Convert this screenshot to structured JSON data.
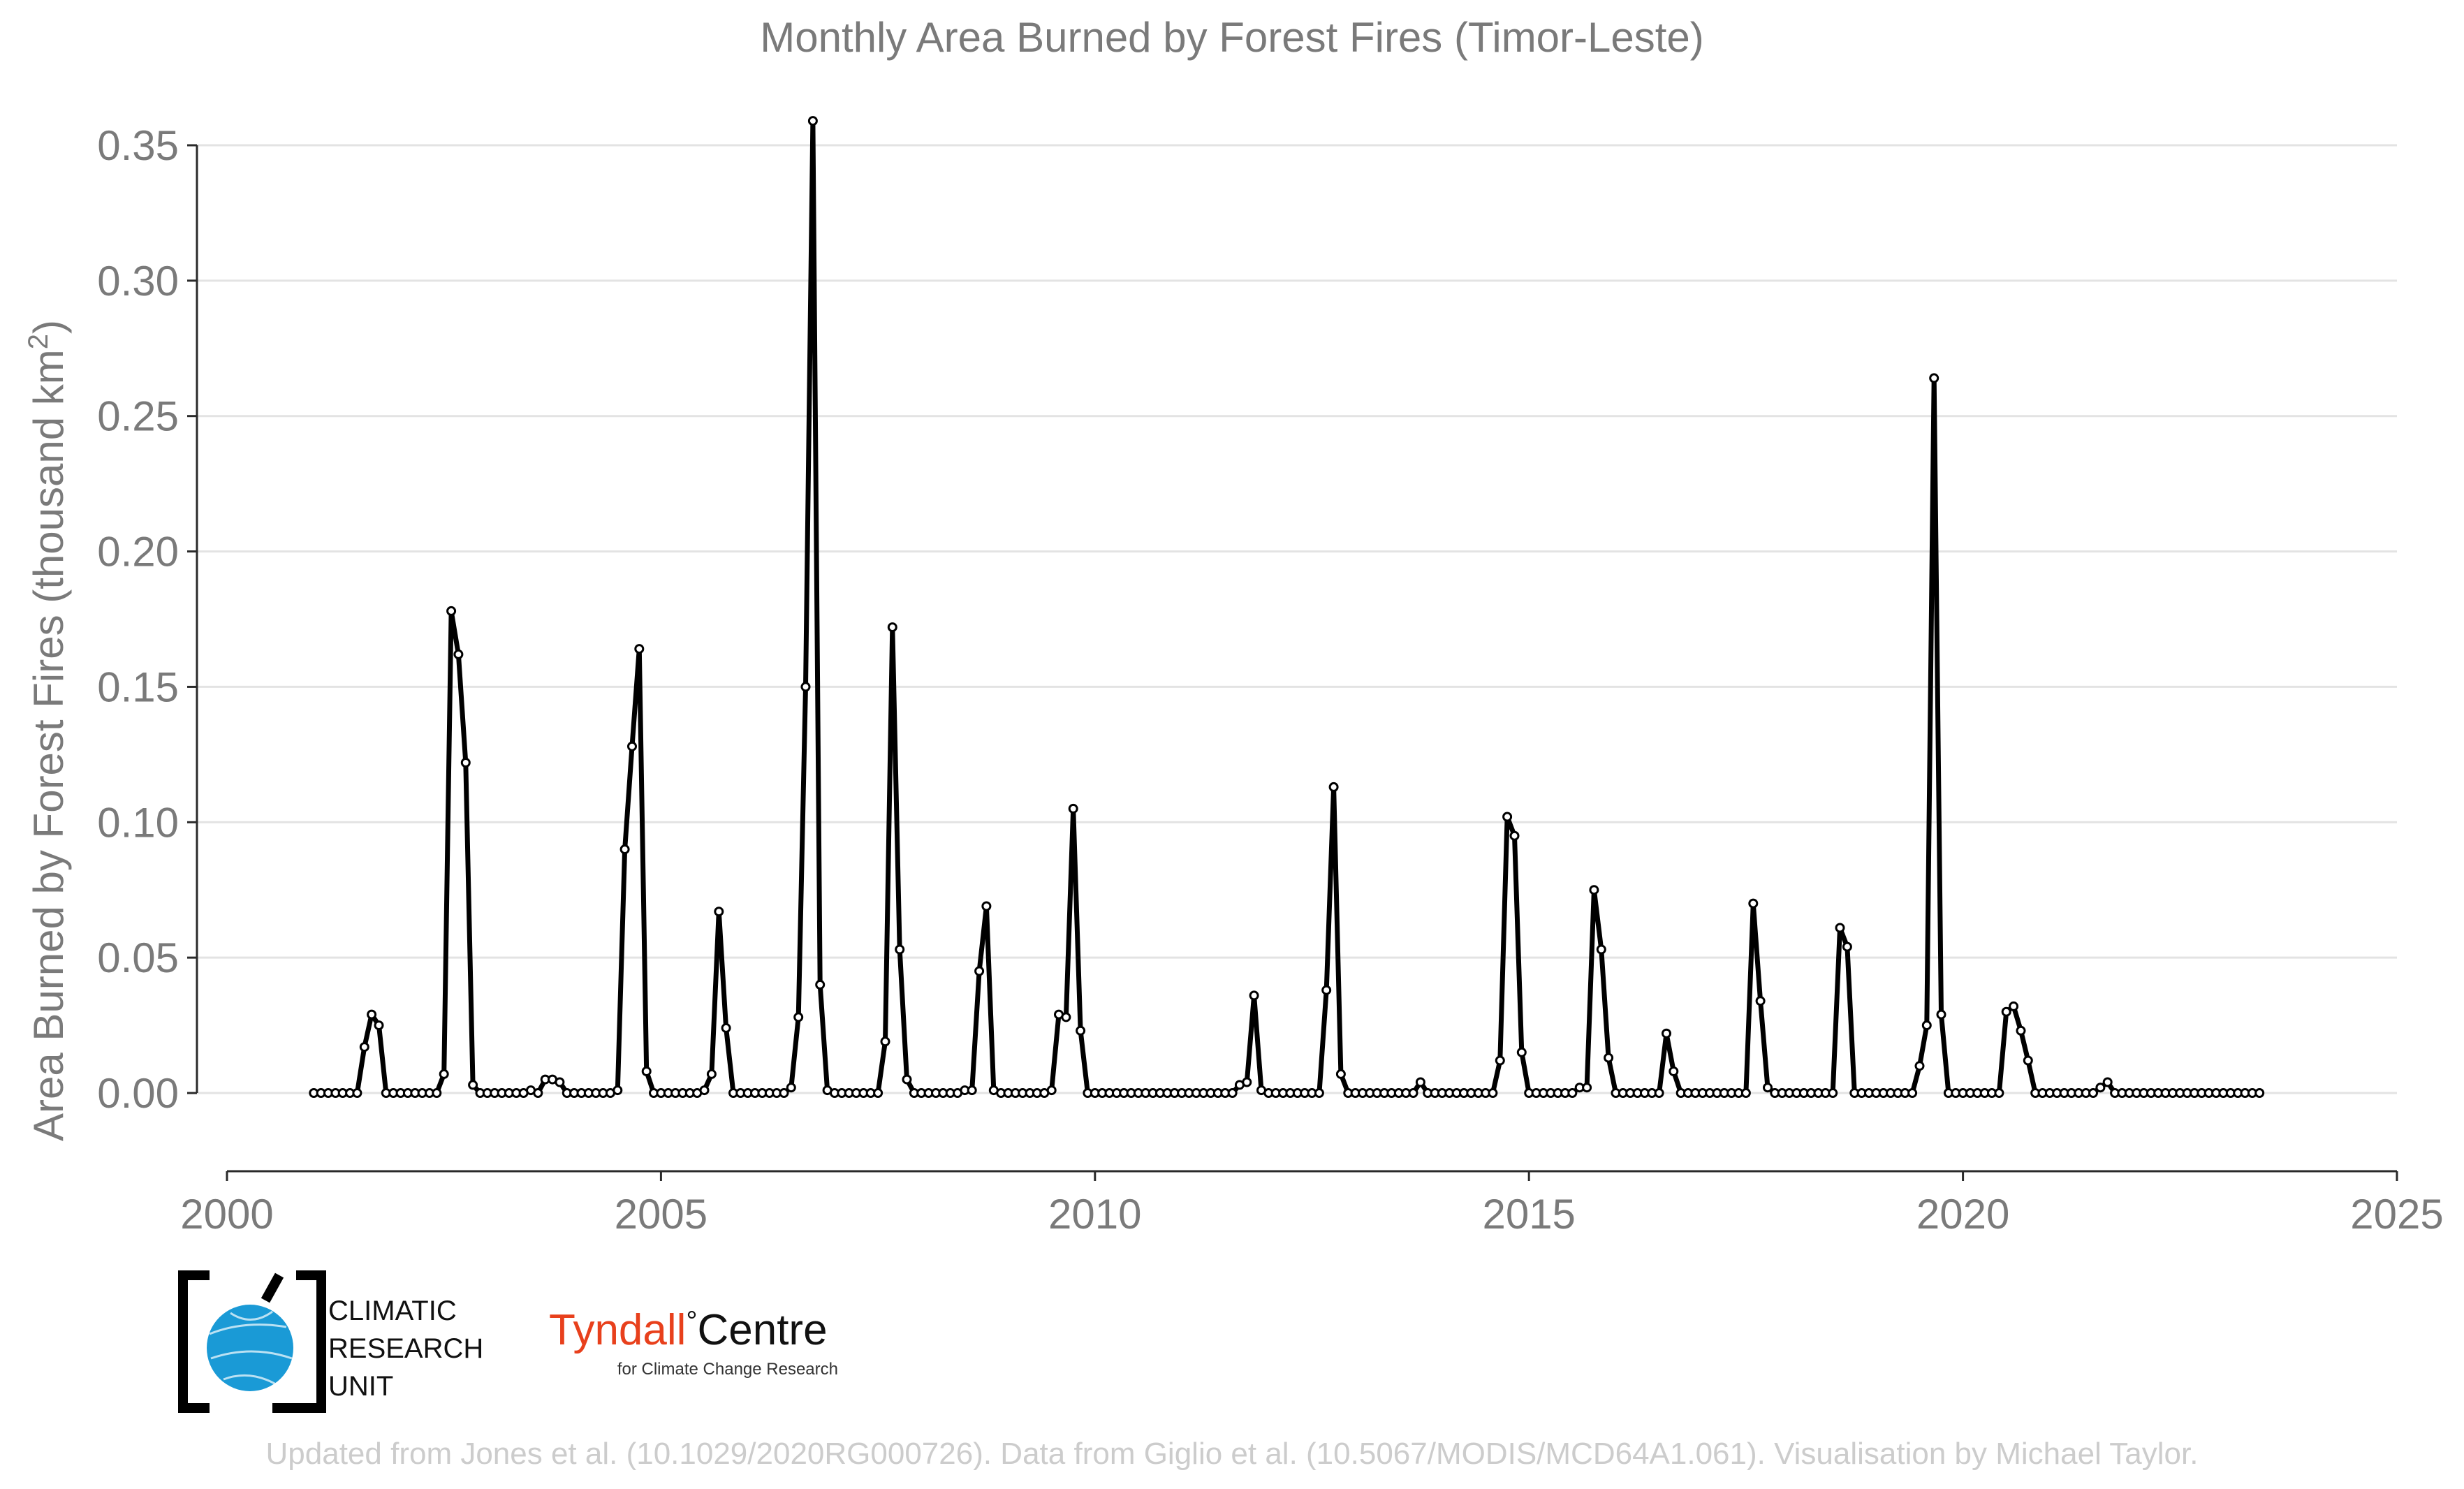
{
  "chart_data": {
    "type": "line",
    "title": "Monthly Area Burned by Forest Fires (Timor-Leste)",
    "xlabel": "",
    "ylabel": "Area Burned by Forest Fires (thousand km²)",
    "xlim": [
      2000,
      2025
    ],
    "ylim": [
      -0.0285,
      0.364
    ],
    "xticks": [
      "2000",
      "2005",
      "2010",
      "2015",
      "2020",
      "2025"
    ],
    "yticks": [
      "0.00",
      "0.05",
      "0.10",
      "0.15",
      "0.20",
      "0.25",
      "0.30",
      "0.35"
    ],
    "grid": "horizontal",
    "start": "2001-01",
    "series": [
      {
        "line_color": "#000000",
        "marker_fill": "#ffffff",
        "values": [
          0,
          0,
          0,
          0,
          0,
          0,
          0,
          0.017,
          0.029,
          0.025,
          0,
          0,
          0,
          0,
          0,
          0,
          0,
          0,
          0.007,
          0.178,
          0.162,
          0.122,
          0.003,
          0,
          0,
          0,
          0,
          0,
          0,
          0,
          0.001,
          0,
          0.005,
          0.005,
          0.004,
          0,
          0,
          0,
          0,
          0,
          0,
          0,
          0.001,
          0.09,
          0.128,
          0.164,
          0.008,
          0,
          0,
          0,
          0,
          0,
          0,
          0,
          0.001,
          0.007,
          0.067,
          0.024,
          0,
          0,
          0,
          0,
          0,
          0,
          0,
          0,
          0.002,
          0.028,
          0.15,
          0.359,
          0.04,
          0.001,
          0,
          0,
          0,
          0,
          0,
          0,
          0,
          0.019,
          0.172,
          0.053,
          0.005,
          0,
          0,
          0,
          0,
          0,
          0,
          0,
          0.001,
          0.001,
          0.045,
          0.069,
          0.001,
          0,
          0,
          0,
          0,
          0,
          0,
          0,
          0.001,
          0.029,
          0.028,
          0.105,
          0.023,
          0,
          0,
          0,
          0,
          0,
          0,
          0,
          0,
          0,
          0,
          0,
          0,
          0,
          0,
          0,
          0,
          0,
          0,
          0,
          0,
          0,
          0.003,
          0.004,
          0.036,
          0.001,
          0,
          0,
          0,
          0,
          0,
          0,
          0,
          0,
          0.038,
          0.113,
          0.007,
          0,
          0,
          0,
          0,
          0,
          0,
          0,
          0,
          0,
          0,
          0.004,
          0,
          0,
          0,
          0,
          0,
          0,
          0,
          0,
          0,
          0,
          0.012,
          0.102,
          0.095,
          0.015,
          0,
          0,
          0,
          0,
          0,
          0,
          0,
          0.002,
          0.002,
          0.075,
          0.053,
          0.013,
          0,
          0,
          0,
          0,
          0,
          0,
          0,
          0.022,
          0.008,
          0,
          0,
          0,
          0,
          0,
          0,
          0,
          0,
          0,
          0,
          0.07,
          0.034,
          0.002,
          0,
          0,
          0,
          0,
          0,
          0,
          0,
          0,
          0,
          0.061,
          0.054,
          0,
          0,
          0,
          0,
          0,
          0,
          0,
          0,
          0,
          0.01,
          0.025,
          0.264,
          0.029,
          0,
          0,
          0,
          0,
          0,
          0,
          0,
          0,
          0.03,
          0.032,
          0.023,
          0.012,
          0,
          0,
          0,
          0,
          0,
          0,
          0,
          0,
          0,
          0.002,
          0.004,
          0,
          0,
          0,
          0,
          0,
          0,
          0,
          0,
          0,
          0,
          0,
          0,
          0,
          0,
          0,
          0,
          0,
          0,
          0,
          0,
          0
        ]
      }
    ]
  },
  "logos": {
    "cru": {
      "line1": "CLIMATIC",
      "line2": "RESEARCH",
      "line3": "UNIT",
      "accent": "#1a9ad6"
    },
    "tyndall": {
      "word1": "Tyndall",
      "degree": "°",
      "word2": "Centre",
      "tagline": "for Climate Change Research",
      "accent": "#e8401c"
    }
  },
  "credit": "Updated from Jones et al. (10.1029/2020RG000726). Data from Giglio et al. (10.5067/MODIS/MCD64A1.061). Visualisation by Michael Taylor."
}
